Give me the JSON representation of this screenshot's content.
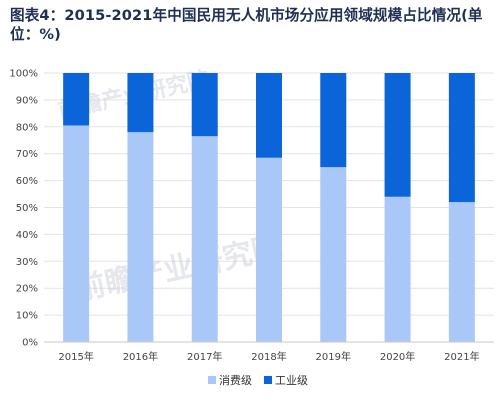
{
  "chart_data": {
    "type": "bar",
    "stacked": true,
    "percent": true,
    "title": "图表4：2015-2021年中国民用无人机市场分应用领域规模占比情况(单位：%)",
    "categories": [
      "2015年",
      "2016年",
      "2017年",
      "2018年",
      "2019年",
      "2020年",
      "2021年"
    ],
    "series": [
      {
        "name": "消费级",
        "color": "#a9c8f7",
        "values": [
          80.5,
          78,
          76.5,
          68.5,
          65,
          54,
          52
        ]
      },
      {
        "name": "工业级",
        "color": "#0b65d8",
        "values": [
          19.5,
          22,
          23.5,
          31.5,
          35,
          46,
          48
        ]
      }
    ],
    "ylim": [
      0,
      100
    ],
    "yticks": [
      "0%",
      "10%",
      "20%",
      "30%",
      "40%",
      "50%",
      "60%",
      "70%",
      "80%",
      "90%",
      "100%"
    ],
    "grid": true,
    "legend": "bottom-center"
  },
  "watermark": [
    "前瞻产业研究院",
    "前瞻产业研究院"
  ]
}
